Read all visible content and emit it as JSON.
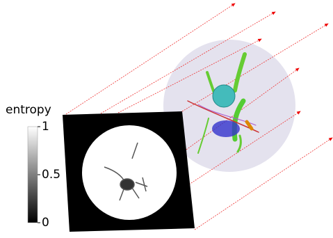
{
  "colorbar": {
    "label": "entropy",
    "range": [
      0,
      1
    ],
    "ticks": [
      0,
      0.5,
      1
    ]
  }
}
